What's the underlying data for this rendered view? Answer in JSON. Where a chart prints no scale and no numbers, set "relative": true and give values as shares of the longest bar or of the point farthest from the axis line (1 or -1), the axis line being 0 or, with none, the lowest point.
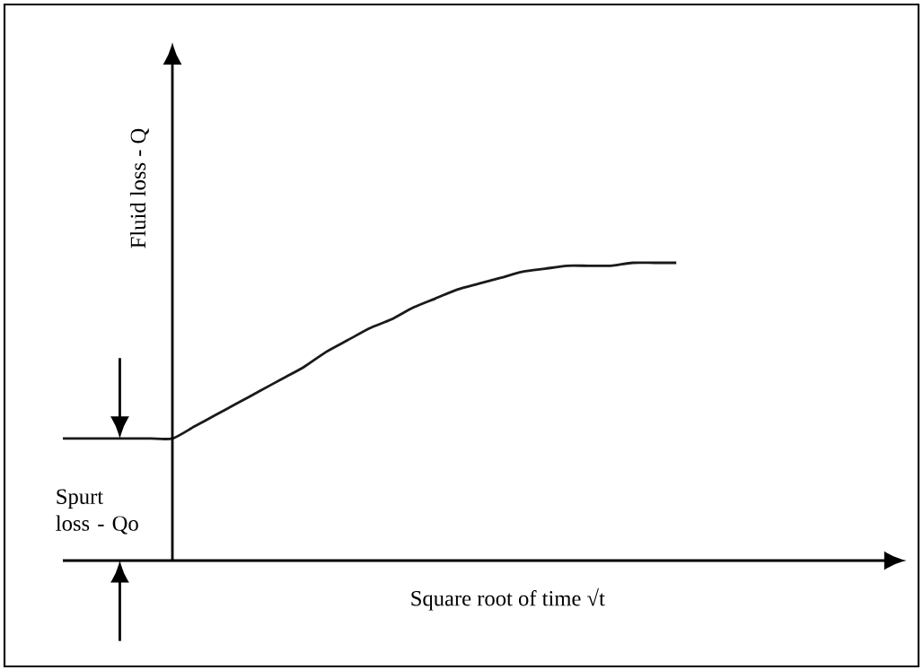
{
  "chart_data": {
    "type": "line",
    "relative": true,
    "color": "#1a1a1a",
    "xlabel": "Square root of time √t",
    "ylabel": "Fluid loss - Q",
    "annotations": [
      "Spurt loss - Qo"
    ],
    "categories": [
      null,
      null,
      null,
      null,
      null,
      null,
      null,
      null,
      null,
      null,
      null,
      null,
      null,
      null,
      null,
      null,
      null,
      null,
      null,
      null,
      null,
      null,
      null,
      null,
      null,
      null,
      null,
      null,
      null
    ],
    "values": [
      0.41,
      0.41,
      0.41,
      0.41,
      0.41,
      0.41,
      0.45,
      0.49,
      0.53,
      0.57,
      0.61,
      0.65,
      0.7,
      0.74,
      0.78,
      0.81,
      0.85,
      0.88,
      0.91,
      0.93,
      0.95,
      0.97,
      0.98,
      0.99,
      0.99,
      0.99,
      1.0,
      1.0,
      1.0
    ]
  }
}
